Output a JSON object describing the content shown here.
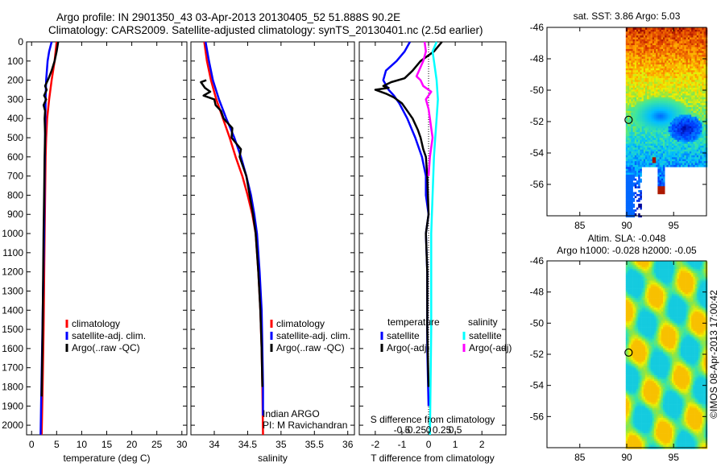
{
  "titles": {
    "line1": "Argo profile: IN 2901350_43 03-Apr-2013 20130405_52 51.888S 90.2E",
    "line2": "Climatology: CARS2009. Satellite-adjusted climatology: synTS_20130401.nc (2.5d earlier)"
  },
  "colors": {
    "climatology": "#ff0000",
    "satellite": "#0000ff",
    "argo": "#000000",
    "sat_salinity": "#00ffff",
    "argo_salinity": "#ff00ff"
  },
  "chart_data": [
    {
      "id": "temperature",
      "type": "line",
      "xlabel": "temperature (deg C)",
      "ylabel": "",
      "xlim": [
        -1,
        31
      ],
      "ylim": [
        2050,
        0
      ],
      "xticks": [
        0,
        5,
        10,
        15,
        20,
        25,
        30
      ],
      "yticks": [
        0,
        100,
        200,
        300,
        400,
        500,
        600,
        700,
        800,
        900,
        1000,
        1100,
        1200,
        1300,
        1400,
        1500,
        1600,
        1700,
        1800,
        1900,
        2000
      ],
      "legend": [
        "climatology",
        "satellite-adj. clim.",
        "Argo(..raw -QC)"
      ],
      "series": [
        {
          "name": "climatology",
          "color": "#ff0000",
          "points": [
            [
              5.0,
              0
            ],
            [
              4.6,
              100
            ],
            [
              4.0,
              200
            ],
            [
              3.5,
              300
            ],
            [
              3.1,
              400
            ],
            [
              2.9,
              500
            ],
            [
              2.8,
              600
            ],
            [
              2.7,
              800
            ],
            [
              2.6,
              1000
            ],
            [
              2.4,
              1500
            ],
            [
              2.2,
              1800
            ],
            [
              2.0,
              2050
            ]
          ]
        },
        {
          "name": "satellite-adj. clim.",
          "color": "#0000ff",
          "points": [
            [
              4.0,
              0
            ],
            [
              3.5,
              50
            ],
            [
              3.2,
              100
            ],
            [
              2.9,
              200
            ],
            [
              2.8,
              300
            ],
            [
              2.7,
              500
            ],
            [
              2.6,
              700
            ],
            [
              2.5,
              1000
            ],
            [
              2.3,
              1300
            ],
            [
              2.1,
              1600
            ],
            [
              1.9,
              1900
            ],
            [
              1.8,
              2050
            ]
          ]
        },
        {
          "name": "Argo(..raw -QC)",
          "color": "#000000",
          "points": [
            [
              5.3,
              0
            ],
            [
              5.0,
              50
            ],
            [
              4.6,
              100
            ],
            [
              4.0,
              150
            ],
            [
              3.4,
              190
            ],
            [
              2.7,
              230
            ],
            [
              3.0,
              250
            ],
            [
              2.5,
              280
            ],
            [
              2.9,
              300
            ],
            [
              2.4,
              330
            ],
            [
              2.7,
              360
            ],
            [
              2.6,
              400
            ],
            [
              2.7,
              480
            ],
            [
              2.6,
              600
            ],
            [
              2.5,
              800
            ],
            [
              2.4,
              1000
            ],
            [
              2.2,
              1500
            ],
            [
              2.0,
              1850
            ]
          ]
        }
      ]
    },
    {
      "id": "salinity",
      "type": "line",
      "xlabel": "salinity",
      "xlim": [
        33.65,
        36.1
      ],
      "ylim": [
        2050,
        0
      ],
      "xticks": [
        34,
        34.5,
        35,
        35.5,
        36
      ],
      "legend": [
        "climatology",
        "satellite-adj. clim.",
        "Argo(..raw -QC)"
      ],
      "annotation": [
        "Indian ARGO",
        "PI: M Ravichandran"
      ],
      "series": [
        {
          "name": "climatology",
          "color": "#ff0000",
          "points": [
            [
              33.85,
              0
            ],
            [
              33.89,
              100
            ],
            [
              33.95,
              200
            ],
            [
              34.03,
              300
            ],
            [
              34.13,
              400
            ],
            [
              34.23,
              500
            ],
            [
              34.32,
              600
            ],
            [
              34.42,
              700
            ],
            [
              34.5,
              800
            ],
            [
              34.57,
              900
            ],
            [
              34.62,
              1000
            ],
            [
              34.66,
              1200
            ],
            [
              34.69,
              1400
            ],
            [
              34.71,
              1600
            ],
            [
              34.72,
              1800
            ],
            [
              34.73,
              2050
            ]
          ]
        },
        {
          "name": "satellite-adj. clim.",
          "color": "#0000ff",
          "points": [
            [
              33.87,
              0
            ],
            [
              33.92,
              100
            ],
            [
              33.98,
              200
            ],
            [
              34.07,
              300
            ],
            [
              34.18,
              400
            ],
            [
              34.3,
              500
            ],
            [
              34.4,
              600
            ],
            [
              34.48,
              700
            ],
            [
              34.55,
              800
            ],
            [
              34.6,
              900
            ],
            [
              34.64,
              1000
            ],
            [
              34.68,
              1200
            ],
            [
              34.71,
              1400
            ],
            [
              34.72,
              1600
            ],
            [
              34.73,
              1800
            ],
            [
              34.73,
              1950
            ]
          ]
        },
        {
          "name": "Argo(..raw -QC)",
          "color": "#000000",
          "points": [
            [
              33.88,
              200
            ],
            [
              33.8,
              210
            ],
            [
              33.86,
              240
            ],
            [
              33.94,
              260
            ],
            [
              33.84,
              280
            ],
            [
              34.0,
              300
            ],
            [
              34.02,
              330
            ],
            [
              34.1,
              360
            ],
            [
              34.14,
              400
            ],
            [
              34.27,
              450
            ],
            [
              34.26,
              500
            ],
            [
              34.4,
              560
            ],
            [
              34.38,
              600
            ],
            [
              34.48,
              700
            ],
            [
              34.53,
              800
            ],
            [
              34.58,
              900
            ],
            [
              34.62,
              1000
            ],
            [
              34.66,
              1200
            ],
            [
              34.69,
              1400
            ],
            [
              34.71,
              1600
            ],
            [
              34.72,
              1800
            ]
          ]
        }
      ]
    },
    {
      "id": "difference",
      "type": "line",
      "xlabel": "T difference from climatology",
      "x2label": "S difference from climatology",
      "xlim": [
        -2.6,
        2.9
      ],
      "ylim": [
        2050,
        0
      ],
      "xticks": [
        -2,
        -1,
        0,
        1,
        2
      ],
      "x2ticks": [
        -0.5,
        -0.25,
        0,
        0.25,
        0.5
      ],
      "legend_headers": [
        "temperature",
        "salinity"
      ],
      "legend": [
        "satellite",
        "Argo(-adj)",
        "satellite",
        "Argo(-adj)"
      ],
      "series": [
        {
          "name": "T satellite",
          "color": "#0000ff",
          "points": [
            [
              -0.7,
              0
            ],
            [
              -0.9,
              50
            ],
            [
              -1.2,
              100
            ],
            [
              -1.6,
              150
            ],
            [
              -1.7,
              200
            ],
            [
              -1.5,
              250
            ],
            [
              -1.3,
              280
            ],
            [
              -1.1,
              320
            ],
            [
              -0.8,
              400
            ],
            [
              -0.5,
              500
            ],
            [
              -0.25,
              600
            ],
            [
              -0.1,
              700
            ],
            [
              -0.1,
              800
            ],
            [
              0.0,
              900
            ],
            [
              -0.1,
              1000
            ],
            [
              -0.05,
              1200
            ],
            [
              -0.05,
              1400
            ],
            [
              -0.05,
              1600
            ],
            [
              0.0,
              1900
            ]
          ]
        },
        {
          "name": "T Argo(-adj)",
          "color": "#000000",
          "points": [
            [
              0.5,
              0
            ],
            [
              0.2,
              50
            ],
            [
              -0.3,
              100
            ],
            [
              -0.6,
              150
            ],
            [
              -0.9,
              190
            ],
            [
              -1.4,
              210
            ],
            [
              -1.7,
              230
            ],
            [
              -1.5,
              240
            ],
            [
              -2.0,
              250
            ],
            [
              -1.6,
              270
            ],
            [
              -1.3,
              290
            ],
            [
              -1.0,
              320
            ],
            [
              -0.8,
              360
            ],
            [
              -0.6,
              400
            ],
            [
              -0.4,
              460
            ],
            [
              -0.3,
              500
            ],
            [
              -0.2,
              560
            ],
            [
              -0.1,
              600
            ],
            [
              -0.05,
              700
            ],
            [
              0.0,
              900
            ],
            [
              -0.1,
              1000
            ],
            [
              -0.05,
              1200
            ],
            [
              -0.05,
              1500
            ],
            [
              0.0,
              1800
            ]
          ]
        },
        {
          "name": "S satellite",
          "color": "#00ffff",
          "points": [
            [
              0.3,
              0
            ],
            [
              0.15,
              50
            ],
            [
              0.2,
              100
            ],
            [
              0.3,
              200
            ],
            [
              0.35,
              300
            ],
            [
              0.3,
              400
            ],
            [
              0.25,
              500
            ],
            [
              0.2,
              600
            ],
            [
              0.15,
              800
            ],
            [
              0.1,
              1000
            ],
            [
              0.1,
              1500
            ],
            [
              0.05,
              2050
            ]
          ]
        },
        {
          "name": "S Argo(-adj)",
          "color": "#ff00ff",
          "points": [
            [
              -0.15,
              0
            ],
            [
              -0.1,
              50
            ],
            [
              -0.2,
              100
            ],
            [
              -0.45,
              180
            ],
            [
              -0.3,
              200
            ],
            [
              -0.2,
              230
            ],
            [
              0.1,
              260
            ],
            [
              -0.1,
              300
            ],
            [
              0.0,
              350
            ],
            [
              0.05,
              400
            ],
            [
              0.1,
              450
            ],
            [
              0.15,
              500
            ],
            [
              0.1,
              550
            ],
            [
              0.05,
              600
            ],
            [
              0.0,
              700
            ]
          ]
        }
      ]
    },
    {
      "id": "sst-map",
      "type": "heatmap",
      "title": "sat. SST: 3.86  Argo: 5.03",
      "xlim": [
        81.5,
        98.5
      ],
      "ylim": [
        -58,
        -46
      ],
      "xticks": [
        85,
        90,
        95
      ],
      "yticks": [
        -46,
        -48,
        -50,
        -52,
        -54,
        -56
      ],
      "marker": {
        "lon": 90.2,
        "lat": -51.888
      }
    },
    {
      "id": "sla-map",
      "type": "heatmap",
      "title": "Altim. SLA: -0.048",
      "subtitle": "Argo h1000: -0.028 h2000: -0.05",
      "xlim": [
        81.5,
        98.5
      ],
      "ylim": [
        -58,
        -46
      ],
      "xticks": [
        85,
        90,
        95
      ],
      "yticks": [
        -46,
        -48,
        -50,
        -52,
        -54,
        -56
      ],
      "marker": {
        "lon": 90.2,
        "lat": -51.888
      },
      "side_label": "©IMOS 08-Apr-2013 17:00:42"
    }
  ]
}
